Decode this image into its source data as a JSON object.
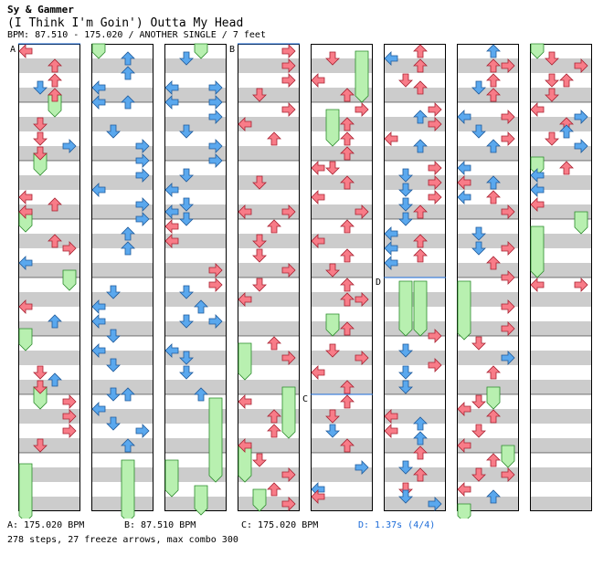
{
  "song": {
    "artist": "Sy & Gammer",
    "title": "(I Think I'm Goin') Outta My Head",
    "info": "BPM: 87.510 - 175.020 / ANOTHER SINGLE / 7 feet"
  },
  "chart_labels": {
    "a": "A",
    "b": "B",
    "c": "C",
    "d": "D"
  },
  "footer": {
    "bpm_a": "A: 175.020 BPM",
    "bpm_b": "B: 87.510 BPM",
    "bpm_c": "C: 175.020 BPM",
    "stop_d": "D: 1.37s (4/4)",
    "stats": "278 steps, 27 freeze arrows, max combo 300"
  },
  "colors": {
    "red_arrow": "#f87c88",
    "blue_arrow": "#5aa8ee",
    "freeze": "#b8f0b0",
    "stripe": "#cccccc",
    "stop_text": "#1a6ad8"
  },
  "icons": {
    "left": "left-arrow-icon",
    "down": "down-arrow-icon",
    "up": "up-arrow-icon",
    "right": "right-arrow-icon"
  }
}
